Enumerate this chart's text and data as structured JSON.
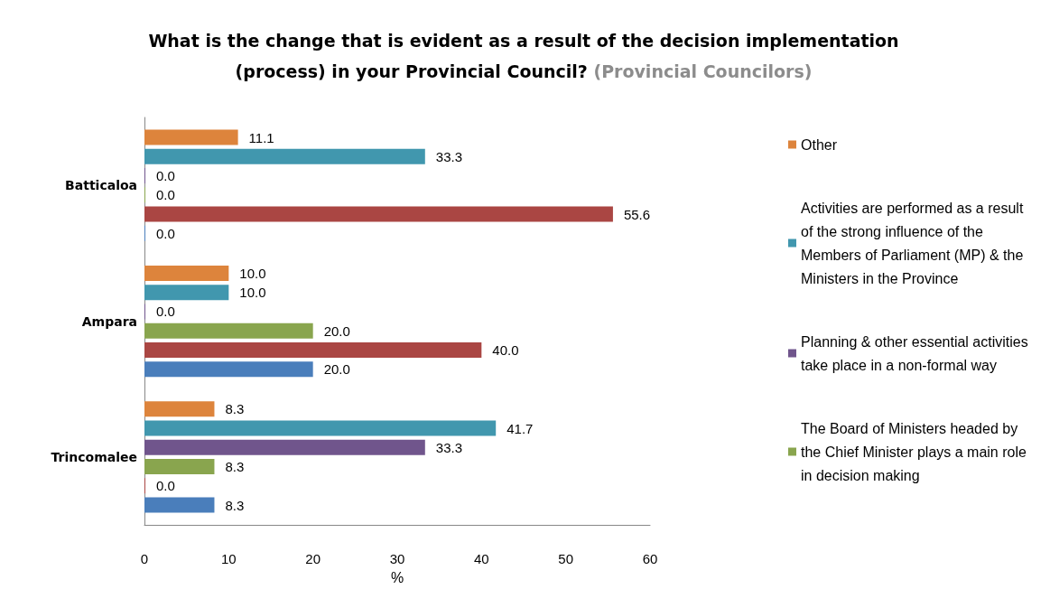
{
  "chart_data": {
    "type": "bar",
    "orientation": "horizontal",
    "title": "What is the change that is evident as a result of the decision implementation (process) in your Provincial Council?",
    "subtitle": "(Provincial Councilors)",
    "xlabel": "%",
    "categories": [
      "Batticaloa",
      "Ampara",
      "Trincomalee"
    ],
    "series": [
      {
        "name": "Other",
        "color": "#dd843c",
        "values": [
          11.1,
          10.0,
          8.3
        ],
        "value_labels": [
          "11.1",
          "10.0",
          "8.3"
        ]
      },
      {
        "name": "Activities are performed as a result of the strong influence of the Members of Parliament (MP) & the Ministers in the Province",
        "color": "#4197ae",
        "values": [
          33.3,
          10.0,
          41.7
        ],
        "value_labels": [
          "33.3",
          "10.0",
          "41.7"
        ]
      },
      {
        "name": "Planning & other essential activities take place in a non-formal way",
        "color": "#70558c",
        "values": [
          0.0,
          0.0,
          33.3
        ],
        "value_labels": [
          "0.0",
          "0.0",
          "33.3"
        ]
      },
      {
        "name": "The Board of Ministers headed by the Chief Minister plays a main role in decision making",
        "color": "#89a54e",
        "values": [
          0.0,
          20.0,
          8.3
        ],
        "value_labels": [
          "0.0",
          "20.0",
          "8.3"
        ]
      },
      {
        "color": "#aa4643",
        "values": [
          55.6,
          40.0,
          0.0
        ],
        "value_labels": [
          "55.6",
          "40.0",
          "0.0"
        ]
      },
      {
        "color": "#4a7ebb",
        "values": [
          0.0,
          20.0,
          8.3
        ],
        "value_labels": [
          "0.0",
          "20.0",
          "8.3"
        ]
      }
    ],
    "xlim": [
      0,
      60
    ],
    "xticks": [
      0,
      10,
      20,
      30,
      40,
      50,
      60
    ],
    "grid": false,
    "legend": "right"
  }
}
